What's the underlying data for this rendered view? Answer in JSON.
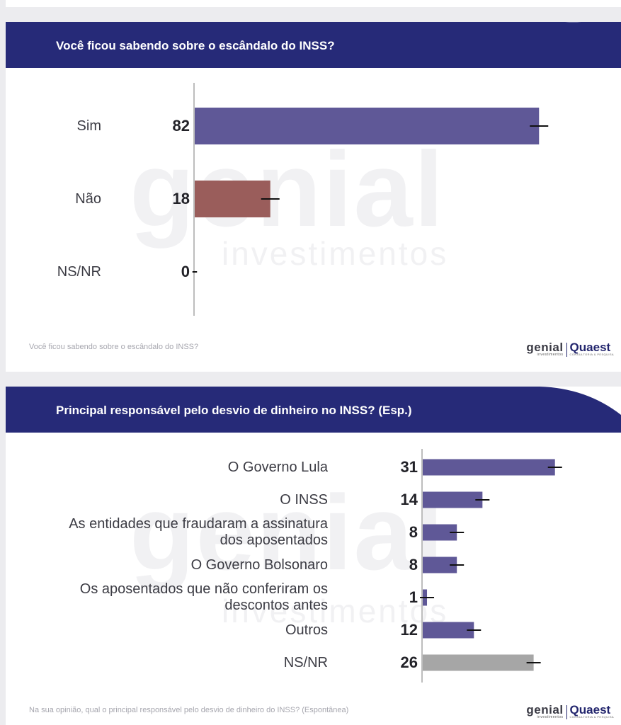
{
  "colors": {
    "header_bg": "#262a78",
    "accent": "#5f5897",
    "nao": "#9a5d5b",
    "nsnr": "#a6a6a6"
  },
  "watermark": {
    "brand": "genial",
    "sub": "investimentos"
  },
  "chart1": {
    "title": "Você ficou sabendo sobre o escândalo do INSS?",
    "footnote": "Você ficou sabendo sobre o escândalo do INSS?",
    "logo": {
      "genial": "genial",
      "genial_sub": "investimentos",
      "quaest": "Quaest",
      "quaest_sub": "CONSULTORIA & PESQUISA"
    }
  },
  "chart2": {
    "title": "Principal responsável pelo desvio de dinheiro no INSS? (Esp.)",
    "footnote": "Na sua opinião, qual o principal responsável pelo desvio de dinheiro do INSS? (Espontânea)",
    "logo": {
      "genial": "genial",
      "genial_sub": "investimentos",
      "quaest": "Quaest",
      "quaest_sub": "CONSULTORIA & PESQUISA"
    }
  },
  "chart_data": [
    {
      "type": "bar",
      "orientation": "horizontal",
      "title": "Você ficou sabendo sobre o escândalo do INSS?",
      "categories": [
        "Sim",
        "Não",
        "NS/NR"
      ],
      "values": [
        82,
        18,
        0
      ],
      "value_labels": [
        "82",
        "18",
        "0"
      ],
      "error_bars": true,
      "bar_colors": [
        "#5f5897",
        "#9a5d5b",
        "#5f5897"
      ],
      "xlim": [
        0,
        100
      ]
    },
    {
      "type": "bar",
      "orientation": "horizontal",
      "title": "Principal responsável pelo desvio de dinheiro no INSS? (Esp.)",
      "categories": [
        [
          "O Governo Lula"
        ],
        [
          "O INSS"
        ],
        [
          "As entidades que fraudaram a assinatura",
          "dos aposentados"
        ],
        [
          "O Governo Bolsonaro"
        ],
        [
          "Os aposentados que não conferiram os",
          "descontos antes"
        ],
        [
          "Outros"
        ],
        [
          "NS/NR"
        ]
      ],
      "values": [
        31,
        14,
        8,
        8,
        1,
        12,
        26
      ],
      "value_labels": [
        "31",
        "14",
        "8",
        "8",
        "1",
        "12",
        "26"
      ],
      "error_bars": true,
      "bar_colors": [
        "#5f5897",
        "#5f5897",
        "#5f5897",
        "#5f5897",
        "#5f5897",
        "#5f5897",
        "#a6a6a6"
      ],
      "xlim": [
        0,
        42
      ]
    }
  ]
}
